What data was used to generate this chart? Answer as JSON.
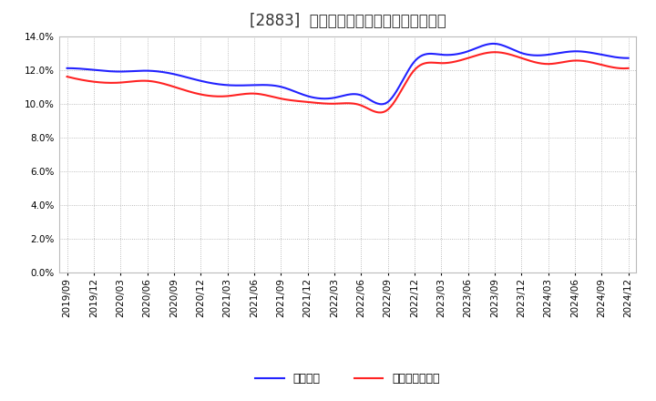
{
  "title": "[2883]  固定比率、固定長期適合率の推移",
  "x_labels": [
    "2019/09",
    "2019/12",
    "2020/03",
    "2020/06",
    "2020/09",
    "2020/12",
    "2021/03",
    "2021/06",
    "2021/09",
    "2021/12",
    "2022/03",
    "2022/06",
    "2022/09",
    "2022/12",
    "2023/03",
    "2023/06",
    "2023/09",
    "2023/12",
    "2024/03",
    "2024/06",
    "2024/09",
    "2024/12"
  ],
  "fixed_ratio": [
    12.1,
    12.0,
    11.9,
    11.95,
    11.75,
    11.35,
    11.1,
    11.1,
    11.0,
    10.45,
    10.35,
    10.5,
    10.1,
    12.5,
    12.9,
    13.1,
    13.55,
    13.0,
    12.9,
    13.1,
    12.9,
    12.7
  ],
  "fixed_longterm_ratio": [
    11.6,
    11.3,
    11.25,
    11.35,
    11.0,
    10.55,
    10.45,
    10.6,
    10.3,
    10.1,
    10.0,
    9.9,
    9.65,
    12.0,
    12.4,
    12.7,
    13.05,
    12.7,
    12.35,
    12.55,
    12.3,
    12.1
  ],
  "line_color_blue": "#2222FF",
  "line_color_red": "#FF2222",
  "legend_blue": "固定比率",
  "legend_red": "固定長期適合率",
  "ylim": [
    0.0,
    14.0
  ],
  "yticks": [
    0.0,
    2.0,
    4.0,
    6.0,
    8.0,
    10.0,
    12.0,
    14.0
  ],
  "bg_color": "#FFFFFF",
  "plot_bg_color": "#FFFFFF",
  "grid_color": "#aaaaaa",
  "title_fontsize": 12,
  "tick_fontsize": 7.5,
  "legend_fontsize": 9
}
